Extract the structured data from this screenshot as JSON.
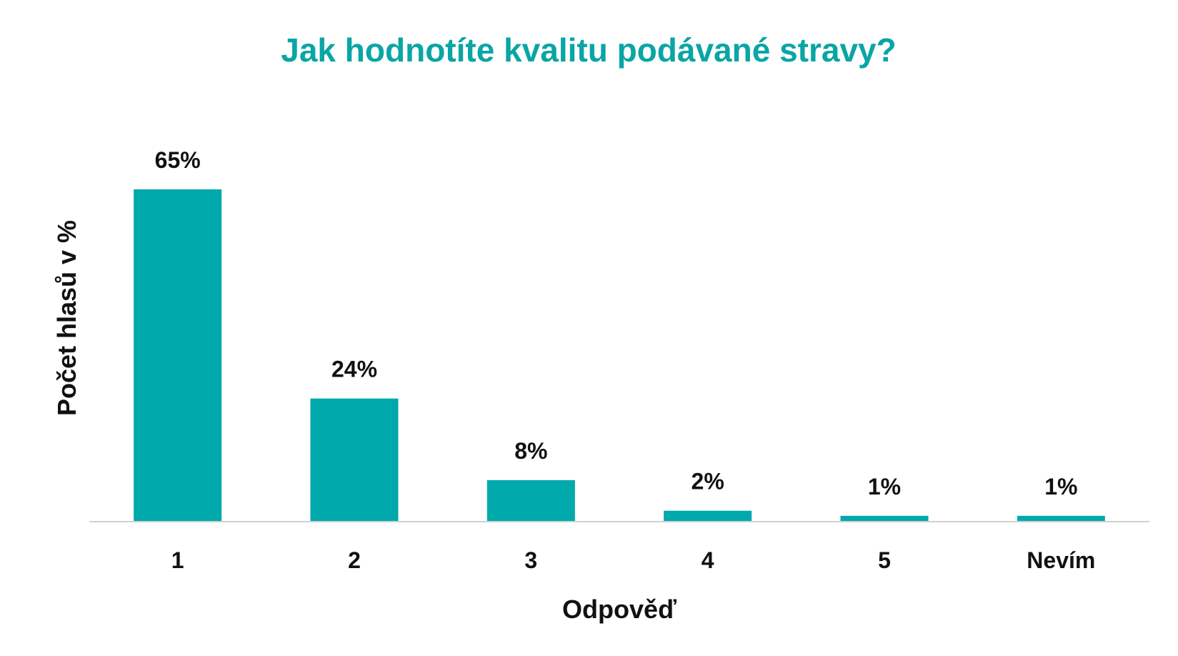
{
  "colors": {
    "title": "#0AA5A5",
    "bar": "#00A9AB",
    "axis_line": "#D0D0D0",
    "text": "#111111"
  },
  "chart_data": {
    "type": "bar",
    "title": "Jak hodnotíte kvalitu podávané stravy?",
    "xlabel": "Odpověď",
    "ylabel": "Počet hlasů v %",
    "categories": [
      "1",
      "2",
      "3",
      "4",
      "5",
      "Nevím"
    ],
    "values": [
      65,
      24,
      8,
      2,
      1,
      1
    ],
    "value_labels": [
      "65%",
      "24%",
      "8%",
      "2%",
      "1%",
      "1%"
    ],
    "unit": "%",
    "ylim": [
      0,
      65
    ],
    "y_axis_visible": false,
    "grid": false,
    "legend": "none"
  }
}
